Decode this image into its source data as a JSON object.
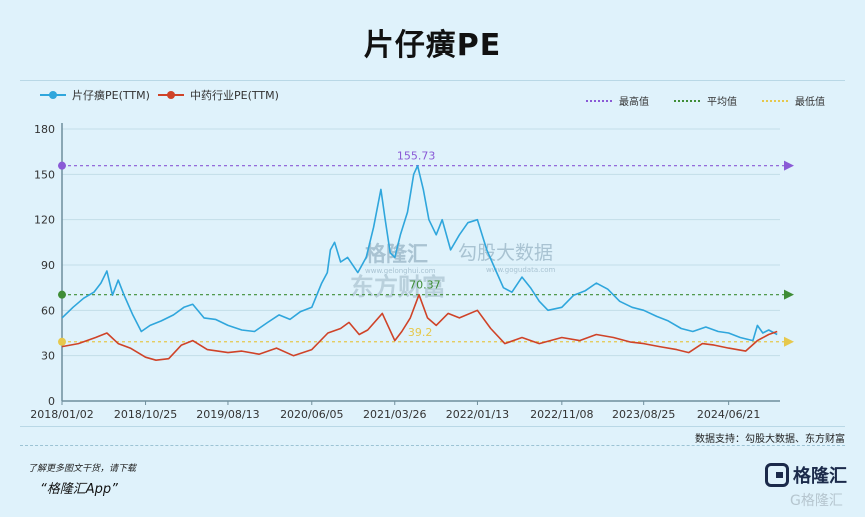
{
  "page": {
    "title": "片仔癀PE",
    "source": "数据支持：勾股大数据、东方财富",
    "footer_hint": "了解更多图文干货，请下载",
    "footer_app": "“格隆汇App”",
    "brand_name": "格隆汇",
    "brand_watermark": "G格隆汇",
    "watermark_a": "格隆汇",
    "watermark_a_url": "www.gelonghui.com",
    "watermark_b": "勾股大数据",
    "watermark_b_url": "www.gogudata.com",
    "watermark_c": "东方财富"
  },
  "colors": {
    "series_a": "#2fa6dc",
    "series_b": "#cf4328",
    "max_line": "#8a5ad6",
    "avg_line": "#3f8d36",
    "min_line": "#e6c84c",
    "axis": "#6f8e9c",
    "grid": "#c3dde8"
  },
  "chart_data": {
    "type": "line",
    "title": "片仔癀PE",
    "x_ticks": [
      "2018/01/02",
      "2018/10/25",
      "2019/08/13",
      "2020/06/05",
      "2021/03/26",
      "2022/01/13",
      "2022/11/08",
      "2023/08/25",
      "2024/06/21"
    ],
    "y_ticks": [
      0,
      30,
      60,
      90,
      120,
      150,
      180
    ],
    "ylim": [
      0,
      180
    ],
    "legend_position": "top-left",
    "series": [
      {
        "name": "片仔癀PE(TTM)",
        "points": [
          [
            "2018/01/02",
            55
          ],
          [
            "2018/02/10",
            62
          ],
          [
            "2018/03/20",
            68
          ],
          [
            "2018/04/25",
            72
          ],
          [
            "2018/05/20",
            78
          ],
          [
            "2018/06/10",
            86
          ],
          [
            "2018/06/30",
            70
          ],
          [
            "2018/07/20",
            80
          ],
          [
            "2018/08/10",
            70
          ],
          [
            "2018/09/10",
            57
          ],
          [
            "2018/10/10",
            46
          ],
          [
            "2018/11/10",
            50
          ],
          [
            "2018/12/20",
            53
          ],
          [
            "2019/02/01",
            57
          ],
          [
            "2019/03/10",
            62
          ],
          [
            "2019/04/10",
            64
          ],
          [
            "2019/05/20",
            55
          ],
          [
            "2019/06/30",
            54
          ],
          [
            "2019/08/13",
            50
          ],
          [
            "2019/10/01",
            47
          ],
          [
            "2019/11/15",
            46
          ],
          [
            "2020/01/01",
            52
          ],
          [
            "2020/02/10",
            57
          ],
          [
            "2020/03/20",
            54
          ],
          [
            "2020/04/25",
            59
          ],
          [
            "2020/06/05",
            62
          ],
          [
            "2020/07/10",
            78
          ],
          [
            "2020/07/30",
            85
          ],
          [
            "2020/08/10",
            100
          ],
          [
            "2020/08/25",
            105
          ],
          [
            "2020/09/15",
            92
          ],
          [
            "2020/10/10",
            95
          ],
          [
            "2020/11/15",
            85
          ],
          [
            "2020/12/15",
            95
          ],
          [
            "2021/01/10",
            115
          ],
          [
            "2021/02/05",
            140
          ],
          [
            "2021/02/20",
            120
          ],
          [
            "2021/03/10",
            98
          ],
          [
            "2021/03/26",
            95
          ],
          [
            "2021/04/15",
            110
          ],
          [
            "2021/05/10",
            125
          ],
          [
            "2021/06/01",
            150
          ],
          [
            "2021/06/15",
            155.73
          ],
          [
            "2021/07/05",
            140
          ],
          [
            "2021/07/25",
            120
          ],
          [
            "2021/08/20",
            110
          ],
          [
            "2021/09/10",
            120
          ],
          [
            "2021/10/10",
            100
          ],
          [
            "2021/11/10",
            110
          ],
          [
            "2021/12/10",
            118
          ],
          [
            "2022/01/13",
            120
          ],
          [
            "2022/02/15",
            100
          ],
          [
            "2022/03/15",
            88
          ],
          [
            "2022/04/15",
            75
          ],
          [
            "2022/05/15",
            72
          ],
          [
            "2022/06/20",
            82
          ],
          [
            "2022/07/20",
            75
          ],
          [
            "2022/08/20",
            66
          ],
          [
            "2022/09/20",
            60
          ],
          [
            "2022/11/08",
            62
          ],
          [
            "2022/12/20",
            70
          ],
          [
            "2023/01/30",
            73
          ],
          [
            "2023/03/10",
            78
          ],
          [
            "2023/04/20",
            74
          ],
          [
            "2023/06/01",
            66
          ],
          [
            "2023/07/15",
            62
          ],
          [
            "2023/08/25",
            60
          ],
          [
            "2023/10/10",
            56
          ],
          [
            "2023/11/20",
            53
          ],
          [
            "2024/01/05",
            48
          ],
          [
            "2024/02/15",
            46
          ],
          [
            "2024/04/01",
            49
          ],
          [
            "2024/05/15",
            46
          ],
          [
            "2024/06/21",
            45
          ],
          [
            "2024/08/01",
            42
          ],
          [
            "2024/09/15",
            40
          ],
          [
            "2024/10/01",
            50
          ],
          [
            "2024/10/20",
            45
          ],
          [
            "2024/11/10",
            47
          ],
          [
            "2024/12/10",
            44
          ]
        ]
      },
      {
        "name": "中药行业PE(TTM)",
        "points": [
          [
            "2018/01/02",
            36
          ],
          [
            "2018/03/01",
            38
          ],
          [
            "2018/05/01",
            42
          ],
          [
            "2018/06/10",
            45
          ],
          [
            "2018/07/20",
            38
          ],
          [
            "2018/09/01",
            35
          ],
          [
            "2018/10/25",
            29
          ],
          [
            "2018/12/01",
            27
          ],
          [
            "2019/01/15",
            28
          ],
          [
            "2019/03/01",
            37
          ],
          [
            "2019/04/10",
            40
          ],
          [
            "2019/06/01",
            34
          ],
          [
            "2019/08/13",
            32
          ],
          [
            "2019/10/01",
            33
          ],
          [
            "2019/12/01",
            31
          ],
          [
            "2020/02/01",
            35
          ],
          [
            "2020/04/01",
            30
          ],
          [
            "2020/06/05",
            34
          ],
          [
            "2020/08/01",
            45
          ],
          [
            "2020/09/15",
            48
          ],
          [
            "2020/10/15",
            52
          ],
          [
            "2020/11/20",
            44
          ],
          [
            "2020/12/20",
            47
          ],
          [
            "2021/02/10",
            58
          ],
          [
            "2021/03/26",
            40
          ],
          [
            "2021/04/20",
            46
          ],
          [
            "2021/05/20",
            55
          ],
          [
            "2021/06/20",
            70.37
          ],
          [
            "2021/07/20",
            55
          ],
          [
            "2021/08/20",
            50
          ],
          [
            "2021/10/01",
            58
          ],
          [
            "2021/11/10",
            55
          ],
          [
            "2022/01/13",
            60
          ],
          [
            "2022/03/01",
            48
          ],
          [
            "2022/04/20",
            38
          ],
          [
            "2022/06/20",
            42
          ],
          [
            "2022/08/20",
            38
          ],
          [
            "2022/11/08",
            42
          ],
          [
            "2023/01/10",
            40
          ],
          [
            "2023/03/10",
            44
          ],
          [
            "2023/05/10",
            42
          ],
          [
            "2023/07/10",
            39
          ],
          [
            "2023/08/25",
            38
          ],
          [
            "2023/10/20",
            36
          ],
          [
            "2023/12/20",
            34
          ],
          [
            "2024/02/01",
            32
          ],
          [
            "2024/03/20",
            38
          ],
          [
            "2024/05/01",
            37
          ],
          [
            "2024/06/21",
            35
          ],
          [
            "2024/08/20",
            33
          ],
          [
            "2024/10/01",
            40
          ],
          [
            "2024/11/10",
            44
          ],
          [
            "2024/12/10",
            46
          ]
        ]
      }
    ],
    "reference_lines": [
      {
        "name": "最高值",
        "value": 155.73,
        "label": "155.73"
      },
      {
        "name": "平均值",
        "value": 70.37,
        "label": "70.37"
      },
      {
        "name": "最低值",
        "value": 39.2,
        "label": "39.2"
      }
    ],
    "grid": true
  }
}
